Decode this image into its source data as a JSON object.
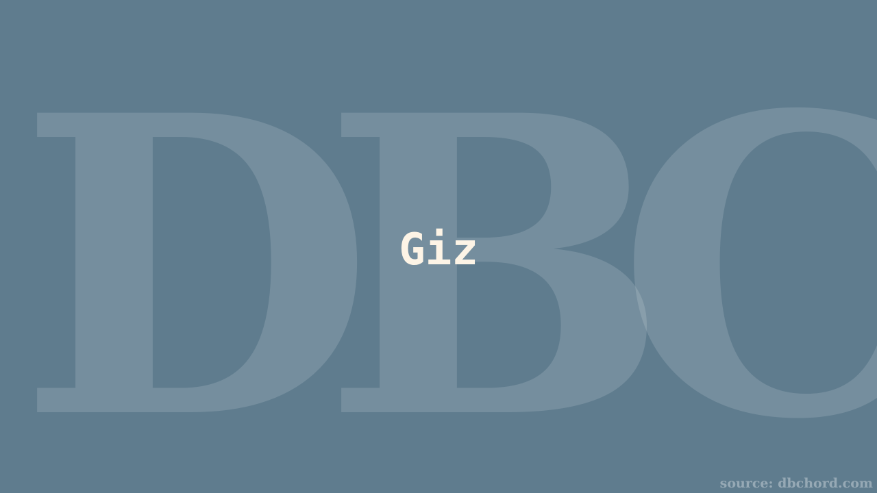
{
  "background": {
    "letters": [
      "D",
      "B",
      "C"
    ],
    "color": "#5f7c8e"
  },
  "main": {
    "word": "Giz",
    "text_color": "#fdf4e6"
  },
  "footer": {
    "source": "source: dbchord.com"
  }
}
